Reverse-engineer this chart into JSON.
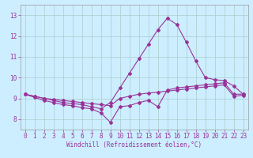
{
  "title": "",
  "xlabel": "Windchill (Refroidissement éolien,°C)",
  "ylabel": "",
  "bg_color": "#cceeff",
  "grid_color": "#aacccc",
  "line_color": "#993399",
  "xlim": [
    -0.5,
    23.5
  ],
  "ylim": [
    7.5,
    13.5
  ],
  "yticks": [
    8,
    9,
    10,
    11,
    12,
    13
  ],
  "xticks": [
    0,
    1,
    2,
    3,
    4,
    5,
    6,
    7,
    8,
    9,
    10,
    11,
    12,
    13,
    14,
    15,
    16,
    17,
    18,
    19,
    20,
    21,
    22,
    23
  ],
  "series": [
    {
      "x": [
        0,
        1,
        2,
        3,
        4,
        5,
        6,
        7,
        8,
        9,
        10,
        11,
        12,
        13,
        14,
        15,
        16,
        17,
        18,
        19,
        20,
        21,
        22,
        23
      ],
      "y": [
        9.2,
        9.1,
        9.0,
        8.9,
        8.8,
        8.75,
        8.7,
        8.6,
        8.5,
        8.8,
        9.5,
        10.2,
        10.9,
        11.6,
        12.3,
        12.85,
        12.55,
        11.7,
        10.8,
        10.0,
        9.9,
        9.85,
        9.6,
        9.2
      ]
    },
    {
      "x": [
        0,
        1,
        2,
        3,
        4,
        5,
        6,
        7,
        8,
        9,
        10,
        11,
        12,
        13,
        14,
        15,
        16,
        17,
        18,
        19,
        20,
        21,
        22,
        23
      ],
      "y": [
        9.2,
        9.05,
        8.9,
        8.8,
        8.7,
        8.65,
        8.55,
        8.5,
        8.3,
        7.85,
        8.6,
        8.65,
        8.8,
        8.9,
        8.6,
        9.4,
        9.5,
        9.55,
        9.6,
        9.65,
        9.7,
        9.75,
        9.2,
        9.2
      ]
    },
    {
      "x": [
        0,
        1,
        2,
        3,
        4,
        5,
        6,
        7,
        8,
        9,
        10,
        11,
        12,
        13,
        14,
        15,
        16,
        17,
        18,
        19,
        20,
        21,
        22,
        23
      ],
      "y": [
        9.2,
        9.1,
        9.0,
        8.95,
        8.9,
        8.85,
        8.8,
        8.75,
        8.7,
        8.65,
        9.0,
        9.1,
        9.2,
        9.25,
        9.3,
        9.35,
        9.4,
        9.45,
        9.5,
        9.55,
        9.6,
        9.65,
        9.1,
        9.15
      ]
    }
  ]
}
